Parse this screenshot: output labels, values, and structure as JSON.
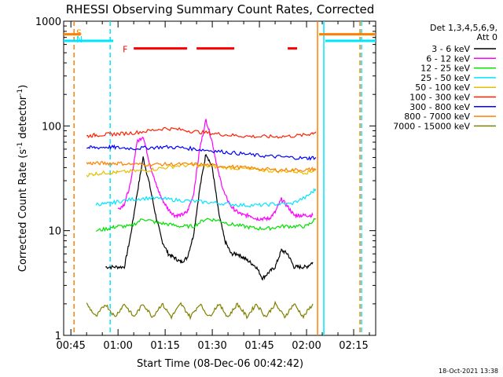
{
  "chart_data": {
    "type": "line",
    "title": "RHESSI Observing Summary Count Rates, Corrected",
    "xlabel": "Start Time (08-Dec-06 00:42:42)",
    "ylabel": "Corrected Count Rate (s",
    "ylabel_sup1": "-1",
    "ylabel_mid": " detector",
    "ylabel_sup2": "-1",
    "ylabel_end": ")",
    "y_scale": "log",
    "ylim": [
      1,
      1000
    ],
    "y_ticks": [
      {
        "value": 1,
        "label": "1"
      },
      {
        "value": 10,
        "label": "10"
      },
      {
        "value": 100,
        "label": "100"
      },
      {
        "value": 1000,
        "label": "1000"
      }
    ],
    "xlim": [
      "00:42:42",
      "02:22:00"
    ],
    "x_ticks": [
      {
        "value": "00:45",
        "label": "00:45"
      },
      {
        "value": "01:00",
        "label": "01:00"
      },
      {
        "value": "01:15",
        "label": "01:15"
      },
      {
        "value": "01:30",
        "label": "01:30"
      },
      {
        "value": "01:45",
        "label": "01:45"
      },
      {
        "value": "02:00",
        "label": "02:00"
      },
      {
        "value": "02:15",
        "label": "02:15"
      }
    ],
    "legend": {
      "placement": "right",
      "header": [
        "Det 1,3,4,5,6,9,",
        "Att 0"
      ],
      "entries": [
        {
          "label": "3 - 6 keV",
          "color": "#000000"
        },
        {
          "label": "6 - 12 keV",
          "color": "#ff00ff"
        },
        {
          "label": "12 - 25 keV",
          "color": "#00e000"
        },
        {
          "label": "25 - 50 keV",
          "color": "#00e5ff"
        },
        {
          "label": "50 - 100 keV",
          "color": "#e6c000"
        },
        {
          "label": "100 - 300 keV",
          "color": "#ff2000"
        },
        {
          "label": "300 - 800 keV",
          "color": "#0000ff"
        },
        {
          "label": "800 - 7000 keV",
          "color": "#ff8000"
        },
        {
          "label": "7000 - 15000 keV",
          "color": "#808000"
        }
      ]
    },
    "series": [
      {
        "name": "3 - 6 keV",
        "color": "#000000",
        "x": [
          "00:56",
          "00:59",
          "01:02",
          "01:04",
          "01:06",
          "01:08",
          "01:10",
          "01:12",
          "01:14",
          "01:16",
          "01:18",
          "01:20",
          "01:22",
          "01:24",
          "01:26",
          "01:28",
          "01:30",
          "01:32",
          "01:34",
          "01:36",
          "01:38",
          "01:40",
          "01:42",
          "01:44",
          "01:46",
          "01:48",
          "01:50",
          "01:52",
          "01:54",
          "01:56",
          "01:58",
          "02:00",
          "02:02"
        ],
        "y": [
          4.5,
          4.5,
          4.5,
          9,
          22,
          50,
          28,
          14,
          8,
          6,
          5.5,
          5,
          5.5,
          9,
          25,
          55,
          40,
          15,
          8,
          6,
          6,
          5.5,
          5,
          4.5,
          3.5,
          4,
          4.5,
          6.5,
          6,
          4.5,
          4.5,
          4.5,
          5
        ]
      },
      {
        "name": "6 - 12 keV",
        "color": "#ff00ff",
        "x": [
          "01:00",
          "01:02",
          "01:04",
          "01:06",
          "01:08",
          "01:10",
          "01:12",
          "01:14",
          "01:16",
          "01:18",
          "01:20",
          "01:22",
          "01:24",
          "01:26",
          "01:28",
          "01:30",
          "01:32",
          "01:34",
          "01:36",
          "01:38",
          "01:40",
          "01:42",
          "01:44",
          "01:46",
          "01:48",
          "01:50",
          "01:52",
          "01:54",
          "01:56",
          "01:58",
          "02:00",
          "02:02"
        ],
        "y": [
          16,
          18,
          28,
          70,
          80,
          45,
          28,
          20,
          16,
          14,
          14,
          15,
          22,
          60,
          115,
          70,
          35,
          22,
          17,
          15,
          14,
          14,
          13,
          13,
          13,
          15,
          20,
          17,
          14,
          14,
          14,
          14
        ]
      },
      {
        "name": "12 - 25 keV",
        "color": "#00e000",
        "x": [
          "00:53",
          "00:57",
          "01:00",
          "01:04",
          "01:08",
          "01:12",
          "01:16",
          "01:20",
          "01:24",
          "01:28",
          "01:32",
          "01:36",
          "01:40",
          "01:44",
          "01:48",
          "01:52",
          "01:56",
          "02:00",
          "02:03"
        ],
        "y": [
          10,
          10.5,
          11,
          11,
          13,
          12,
          11.5,
          11,
          11,
          13,
          12.5,
          11.5,
          11,
          10.5,
          10.5,
          11,
          11,
          11,
          13
        ]
      },
      {
        "name": "25 - 50 keV",
        "color": "#00e5ff",
        "x": [
          "00:53",
          "00:57",
          "01:00",
          "01:05",
          "01:10",
          "01:15",
          "01:20",
          "01:25",
          "01:30",
          "01:35",
          "01:40",
          "01:45",
          "01:50",
          "01:55",
          "02:00",
          "02:03"
        ],
        "y": [
          18,
          18,
          19,
          20,
          20.5,
          20,
          19.5,
          19,
          18.5,
          18,
          17.5,
          17.5,
          18,
          18,
          21,
          25
        ]
      },
      {
        "name": "50 - 100 keV",
        "color": "#e6c000",
        "x": [
          "00:50",
          "00:53",
          "00:57",
          "01:00",
          "01:05",
          "01:10",
          "01:15",
          "01:20",
          "01:25",
          "01:30",
          "01:35",
          "01:40",
          "01:45",
          "01:50",
          "01:55",
          "02:00",
          "02:03"
        ],
        "y": [
          34,
          35,
          36,
          36,
          37,
          38,
          40,
          42,
          42,
          41,
          40,
          39,
          38,
          37,
          37,
          36,
          38
        ]
      },
      {
        "name": "100 - 300 keV",
        "color": "#ff2000",
        "x": [
          "00:50",
          "00:53",
          "00:57",
          "01:00",
          "01:05",
          "01:10",
          "01:15",
          "01:20",
          "01:25",
          "01:30",
          "01:35",
          "01:40",
          "01:45",
          "01:50",
          "01:55",
          "02:00",
          "02:03"
        ],
        "y": [
          80,
          82,
          83,
          84,
          86,
          90,
          95,
          92,
          88,
          85,
          82,
          80,
          79,
          79,
          80,
          82,
          88
        ]
      },
      {
        "name": "300 - 800 keV",
        "color": "#0000ff",
        "x": [
          "00:50",
          "00:53",
          "00:57",
          "01:00",
          "01:05",
          "01:10",
          "01:15",
          "01:20",
          "01:25",
          "01:30",
          "01:35",
          "01:40",
          "01:45",
          "01:50",
          "01:55",
          "02:00",
          "02:03"
        ],
        "y": [
          62,
          62,
          63,
          62,
          61,
          62,
          63,
          62,
          60,
          58,
          56,
          54,
          52,
          51,
          50,
          49,
          50
        ]
      },
      {
        "name": "800 - 7000 keV",
        "color": "#ff8000",
        "x": [
          "00:50",
          "00:53",
          "00:57",
          "01:00",
          "01:05",
          "01:10",
          "01:15",
          "01:20",
          "01:25",
          "01:30",
          "01:35",
          "01:40",
          "01:45",
          "01:50",
          "01:55",
          "02:00",
          "02:03"
        ],
        "y": [
          44,
          44,
          44,
          44,
          43,
          43,
          43,
          43,
          43,
          42,
          41,
          40,
          39,
          38,
          38,
          38,
          39
        ]
      },
      {
        "name": "7000 - 15000 keV",
        "color": "#808000",
        "x": [
          "00:50",
          "00:53",
          "00:56",
          "00:59",
          "01:02",
          "01:05",
          "01:08",
          "01:11",
          "01:14",
          "01:17",
          "01:20",
          "01:23",
          "01:26",
          "01:29",
          "01:32",
          "01:35",
          "01:38",
          "01:41",
          "01:44",
          "01:47",
          "01:50",
          "01:53",
          "01:56",
          "01:59",
          "02:02"
        ],
        "y": [
          2,
          1.5,
          2,
          1.5,
          2,
          1.5,
          2,
          1.5,
          2,
          1.5,
          2,
          1.5,
          2,
          1.5,
          2,
          1.5,
          2,
          1.5,
          2,
          1.5,
          2,
          1.5,
          2,
          1.5,
          2
        ]
      }
    ],
    "flag_bars": [
      {
        "label": "S",
        "color": "#ff8000",
        "y": 750,
        "start": "00:42:42",
        "end": "00:48:00"
      },
      {
        "label": "",
        "color": "#ff8000",
        "y": 750,
        "start": "02:04:00",
        "end": "02:22:00"
      },
      {
        "label": "N",
        "color": "#00e5ff",
        "y": 650,
        "start": "00:42:42",
        "end": "00:58:30"
      },
      {
        "label": "",
        "color": "#00e5ff",
        "y": 650,
        "start": "02:06:00",
        "end": "02:22:00"
      }
    ],
    "flare_bars": {
      "label": "F",
      "color": "#ff0000",
      "y": 550,
      "segments": [
        [
          "01:05",
          "01:22"
        ],
        [
          "01:25",
          "01:37"
        ],
        [
          "01:54",
          "01:57"
        ]
      ]
    },
    "vlines": [
      {
        "time": "00:46:00",
        "color": "#ff8000",
        "style": "dashed"
      },
      {
        "time": "00:57:30",
        "color": "#00e5ff",
        "style": "dashed"
      },
      {
        "time": "02:03:30",
        "color": "#ff8000",
        "style": "solid"
      },
      {
        "time": "02:05:30",
        "color": "#00e5ff",
        "style": "solid"
      },
      {
        "time": "02:17:00",
        "color": "#ff8000",
        "style": "dashed"
      },
      {
        "time": "02:17:30",
        "color": "#00e5ff",
        "style": "dashed"
      }
    ],
    "gridlines": false,
    "timestamp": "18-Oct-2021 13:38"
  }
}
